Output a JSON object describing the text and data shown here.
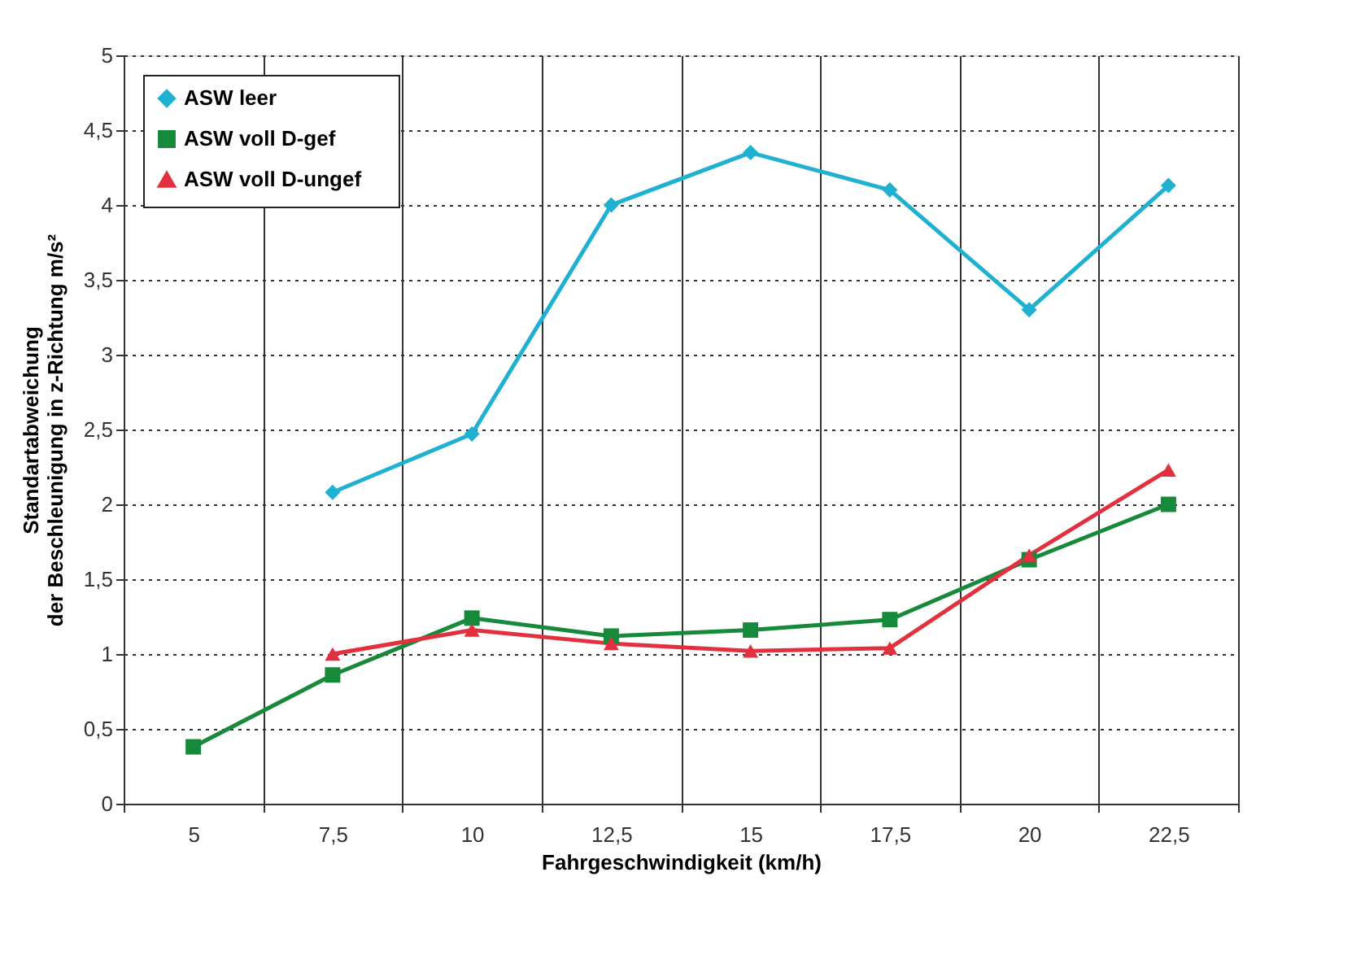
{
  "chart_data": {
    "type": "line",
    "xlabel": "Fahrgeschwindigkeit (km/h)",
    "ylabel": "Standartabweichung\nder Beschleunigung in z-Richtung  m/s²",
    "categories": [
      "5",
      "7,5",
      "10",
      "12,5",
      "15",
      "17,5",
      "20",
      "22,5"
    ],
    "series": [
      {
        "name": "ASW   leer",
        "color": "#1fb0d2",
        "marker": "diamond",
        "values": [
          null,
          2.08,
          2.47,
          4.0,
          4.35,
          4.1,
          3.3,
          4.13
        ]
      },
      {
        "name": "ASW   voll   D-gef",
        "color": "#16893a",
        "marker": "square",
        "values": [
          0.38,
          0.86,
          1.24,
          1.12,
          1.16,
          1.23,
          1.63,
          2.0
        ]
      },
      {
        "name": "ASW   voll   D-ungef",
        "color": "#e3303f",
        "marker": "triangle",
        "values": [
          null,
          1.0,
          1.16,
          1.07,
          1.02,
          1.04,
          1.66,
          2.23
        ]
      }
    ],
    "ylim": [
      0,
      5
    ],
    "yticks": [
      0,
      {
        "value": 0.5,
        "label": "0,5"
      },
      1,
      {
        "value": 1.5,
        "label": "1,5"
      },
      2,
      {
        "value": 2.5,
        "label": "2,5"
      },
      3,
      {
        "value": 3.5,
        "label": "3,5"
      },
      4,
      {
        "value": 4.5,
        "label": "4,5"
      },
      5
    ],
    "grid": true,
    "legend": "top left",
    "line_style": "solid"
  }
}
